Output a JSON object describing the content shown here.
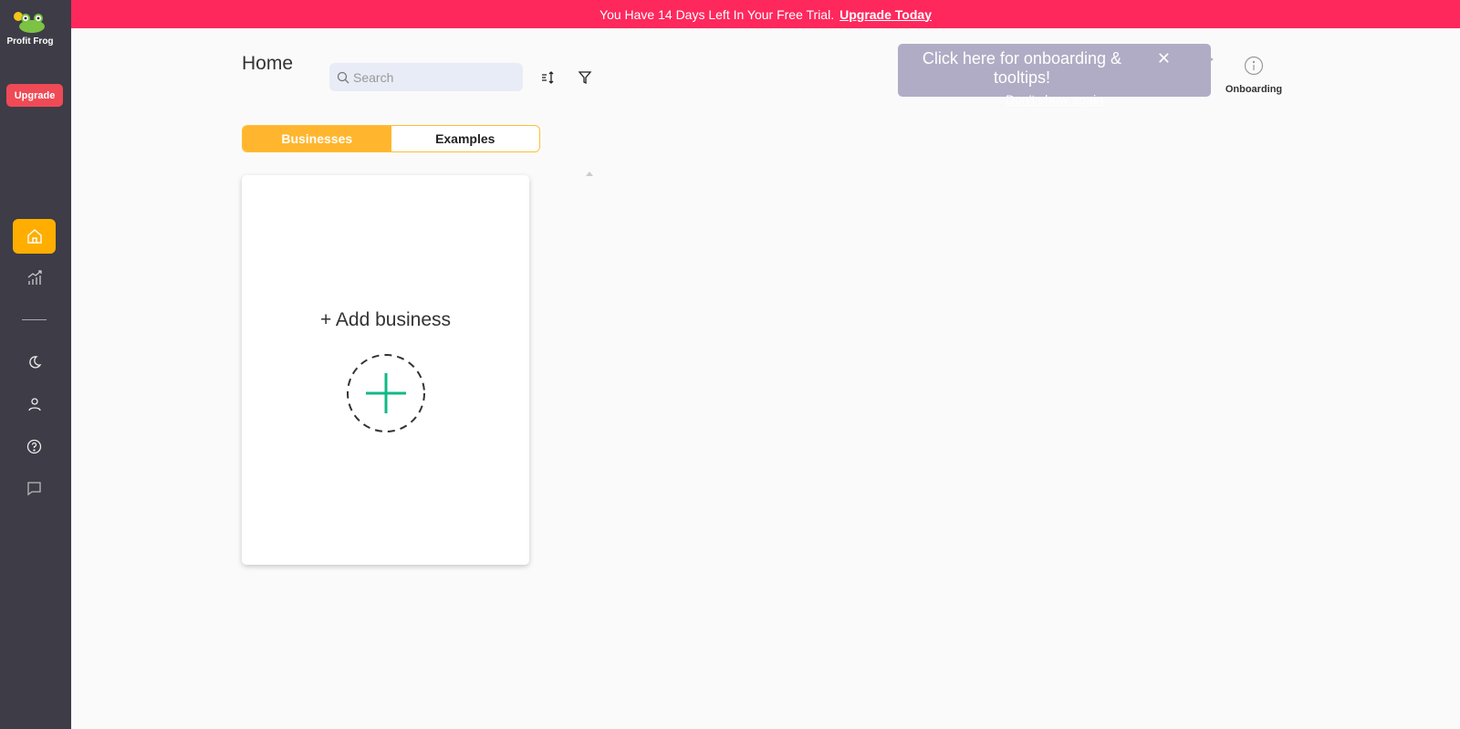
{
  "app": {
    "name": "Profit Frog",
    "upgrade_label": "Upgrade"
  },
  "banner": {
    "text": "You Have 14 Days Left In Your Free Trial.",
    "link": "Upgrade Today"
  },
  "sidebar": {
    "items": [
      {
        "icon": "home-icon",
        "active": true
      },
      {
        "icon": "chart-icon"
      },
      {
        "icon": "moon-icon"
      },
      {
        "icon": "user-icon"
      },
      {
        "icon": "help-icon"
      },
      {
        "icon": "chat-icon"
      }
    ]
  },
  "header": {
    "title": "Home",
    "search_placeholder": "Search"
  },
  "tabs": [
    {
      "label": "Businesses",
      "active": true
    },
    {
      "label": "Examples"
    }
  ],
  "card": {
    "label": "+ Add business"
  },
  "tooltip": {
    "text": "Click here for onboarding & tooltips!",
    "dismiss": "Don't show again"
  },
  "onboarding": {
    "label": "Onboarding"
  },
  "colors": {
    "banner": "#fe285d",
    "accent": "#ffae00",
    "sidebar": "#3d3c47",
    "plus": "#12b886"
  }
}
